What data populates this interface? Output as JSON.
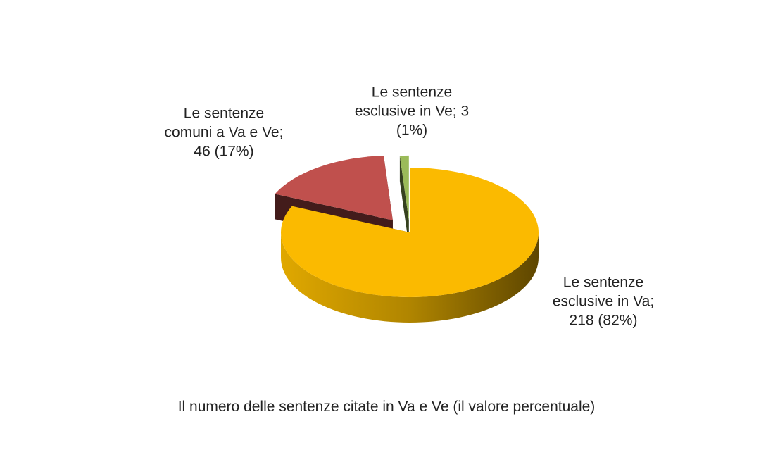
{
  "chart_data": {
    "type": "pie",
    "title": "Il numero delle sentenze citate in Va e Ve (il valore percentuale)",
    "categories": [
      "Le sentenze esclusive in Va;",
      "Le sentenze comuni a Va e Ve;",
      "Le sentenze esclusive in Ve;"
    ],
    "values": [
      218,
      46,
      3
    ],
    "value_labels": [
      "218 (82%)",
      "46 (17%)",
      "3 (1%)"
    ],
    "colors": [
      "#FBBA00",
      "#C0504D",
      "#9BBB59"
    ]
  }
}
